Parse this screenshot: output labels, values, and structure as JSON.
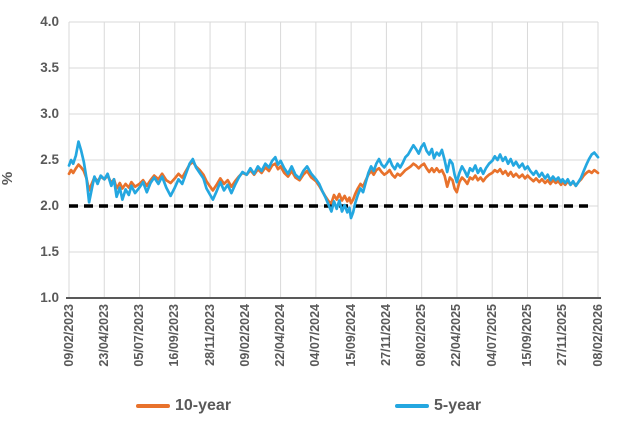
{
  "colors": {
    "gridline": "#D9D9D9",
    "axis_line": "#595959",
    "tick_text": "#595959"
  },
  "chart_data": {
    "type": "line",
    "title": "",
    "xlabel": "",
    "ylabel": "%",
    "ylim": [
      1.0,
      4.0
    ],
    "grid": true,
    "legend_position": "bottom",
    "y_ticks": [
      "4.0",
      "3.5",
      "3.0",
      "2.5",
      "2.0",
      "1.5",
      "1.0"
    ],
    "x_domain": [
      "09/02/2023",
      "08/02/2026"
    ],
    "x_tick_labels": [
      "09/02/2023",
      "23/04/2023",
      "05/07/2023",
      "16/09/2023",
      "28/11/2023",
      "09/02/2024",
      "22/04/2024",
      "04/07/2024",
      "15/09/2024",
      "27/11/2024",
      "08/02/2025",
      "22/04/2025",
      "04/07/2025",
      "15/09/2025",
      "27/11/2025",
      "08/02/2026"
    ],
    "reference_line": {
      "y": 2.0,
      "style": "dashed",
      "color": "#000000"
    },
    "x": [
      0.0,
      0.004,
      0.008,
      0.013,
      0.018,
      0.023,
      0.028,
      0.033,
      0.038,
      0.043,
      0.048,
      0.054,
      0.06,
      0.067,
      0.073,
      0.08,
      0.085,
      0.09,
      0.096,
      0.101,
      0.107,
      0.113,
      0.118,
      0.125,
      0.133,
      0.14,
      0.147,
      0.154,
      0.161,
      0.169,
      0.176,
      0.184,
      0.192,
      0.2,
      0.207,
      0.214,
      0.221,
      0.228,
      0.234,
      0.24,
      0.247,
      0.254,
      0.26,
      0.267,
      0.272,
      0.279,
      0.286,
      0.293,
      0.3,
      0.307,
      0.314,
      0.321,
      0.328,
      0.336,
      0.343,
      0.35,
      0.357,
      0.364,
      0.371,
      0.378,
      0.384,
      0.39,
      0.395,
      0.4,
      0.407,
      0.414,
      0.421,
      0.428,
      0.436,
      0.443,
      0.45,
      0.458,
      0.467,
      0.473,
      0.479,
      0.485,
      0.491,
      0.496,
      0.501,
      0.506,
      0.511,
      0.516,
      0.521,
      0.526,
      0.53,
      0.533,
      0.537,
      0.541,
      0.546,
      0.551,
      0.556,
      0.561,
      0.566,
      0.571,
      0.576,
      0.581,
      0.586,
      0.591,
      0.596,
      0.601,
      0.606,
      0.611,
      0.616,
      0.621,
      0.626,
      0.631,
      0.636,
      0.641,
      0.646,
      0.651,
      0.656,
      0.661,
      0.666,
      0.671,
      0.676,
      0.681,
      0.686,
      0.69,
      0.695,
      0.7,
      0.705,
      0.71,
      0.715,
      0.72,
      0.725,
      0.729,
      0.733,
      0.738,
      0.743,
      0.748,
      0.753,
      0.758,
      0.763,
      0.768,
      0.773,
      0.778,
      0.783,
      0.788,
      0.794,
      0.8,
      0.805,
      0.81,
      0.815,
      0.82,
      0.825,
      0.83,
      0.835,
      0.84,
      0.845,
      0.851,
      0.857,
      0.862,
      0.867,
      0.872,
      0.878,
      0.883,
      0.889,
      0.894,
      0.9,
      0.905,
      0.91,
      0.915,
      0.92,
      0.925,
      0.93,
      0.933,
      0.938,
      0.943,
      0.948,
      0.953,
      0.958,
      0.963,
      0.968,
      0.973,
      0.978,
      0.983,
      0.988,
      0.993,
      1.0
    ],
    "series": [
      {
        "name": "10-year",
        "color": "#E8722C",
        "values": [
          2.35,
          2.39,
          2.36,
          2.41,
          2.45,
          2.42,
          2.38,
          2.3,
          2.17,
          2.24,
          2.31,
          2.27,
          2.32,
          2.29,
          2.33,
          2.25,
          2.29,
          2.19,
          2.25,
          2.19,
          2.24,
          2.2,
          2.26,
          2.21,
          2.24,
          2.28,
          2.22,
          2.28,
          2.33,
          2.29,
          2.35,
          2.28,
          2.25,
          2.3,
          2.35,
          2.31,
          2.38,
          2.45,
          2.48,
          2.43,
          2.39,
          2.34,
          2.27,
          2.21,
          2.17,
          2.23,
          2.3,
          2.24,
          2.28,
          2.21,
          2.27,
          2.32,
          2.36,
          2.34,
          2.39,
          2.34,
          2.4,
          2.36,
          2.42,
          2.38,
          2.44,
          2.46,
          2.4,
          2.43,
          2.36,
          2.32,
          2.38,
          2.31,
          2.28,
          2.34,
          2.38,
          2.31,
          2.27,
          2.22,
          2.16,
          2.1,
          2.05,
          2.03,
          2.12,
          2.07,
          2.13,
          2.06,
          2.11,
          2.05,
          2.09,
          2.03,
          2.07,
          2.13,
          2.19,
          2.24,
          2.21,
          2.28,
          2.34,
          2.38,
          2.34,
          2.39,
          2.41,
          2.37,
          2.34,
          2.36,
          2.39,
          2.34,
          2.31,
          2.35,
          2.33,
          2.36,
          2.39,
          2.41,
          2.43,
          2.46,
          2.44,
          2.41,
          2.44,
          2.46,
          2.41,
          2.37,
          2.41,
          2.37,
          2.41,
          2.37,
          2.39,
          2.33,
          2.21,
          2.31,
          2.28,
          2.19,
          2.15,
          2.26,
          2.31,
          2.28,
          2.24,
          2.31,
          2.29,
          2.33,
          2.28,
          2.31,
          2.27,
          2.31,
          2.34,
          2.36,
          2.39,
          2.37,
          2.4,
          2.35,
          2.38,
          2.33,
          2.37,
          2.32,
          2.35,
          2.31,
          2.34,
          2.3,
          2.33,
          2.3,
          2.27,
          2.3,
          2.26,
          2.29,
          2.25,
          2.28,
          2.24,
          2.28,
          2.25,
          2.27,
          2.23,
          2.26,
          2.23,
          2.27,
          2.23,
          2.26,
          2.22,
          2.26,
          2.29,
          2.33,
          2.36,
          2.38,
          2.36,
          2.39,
          2.36
        ]
      },
      {
        "name": "5-year",
        "color": "#24A7E0",
        "values": [
          2.44,
          2.5,
          2.46,
          2.55,
          2.7,
          2.6,
          2.48,
          2.3,
          2.04,
          2.18,
          2.32,
          2.24,
          2.33,
          2.29,
          2.35,
          2.22,
          2.29,
          2.1,
          2.2,
          2.07,
          2.18,
          2.12,
          2.22,
          2.14,
          2.2,
          2.26,
          2.15,
          2.25,
          2.31,
          2.24,
          2.32,
          2.2,
          2.11,
          2.2,
          2.29,
          2.24,
          2.35,
          2.46,
          2.51,
          2.42,
          2.36,
          2.3,
          2.19,
          2.12,
          2.07,
          2.16,
          2.26,
          2.17,
          2.23,
          2.14,
          2.23,
          2.31,
          2.37,
          2.34,
          2.41,
          2.35,
          2.43,
          2.38,
          2.46,
          2.42,
          2.49,
          2.53,
          2.45,
          2.49,
          2.41,
          2.35,
          2.43,
          2.34,
          2.3,
          2.38,
          2.43,
          2.35,
          2.29,
          2.24,
          2.16,
          2.09,
          2.01,
          1.94,
          2.05,
          1.97,
          2.06,
          1.94,
          2.01,
          1.93,
          1.98,
          1.87,
          1.93,
          2.03,
          2.12,
          2.19,
          2.15,
          2.26,
          2.36,
          2.43,
          2.38,
          2.46,
          2.51,
          2.45,
          2.42,
          2.46,
          2.51,
          2.44,
          2.4,
          2.46,
          2.42,
          2.47,
          2.53,
          2.56,
          2.61,
          2.66,
          2.62,
          2.57,
          2.64,
          2.68,
          2.6,
          2.56,
          2.62,
          2.52,
          2.58,
          2.55,
          2.61,
          2.5,
          2.37,
          2.5,
          2.46,
          2.34,
          2.26,
          2.36,
          2.43,
          2.38,
          2.32,
          2.41,
          2.38,
          2.44,
          2.36,
          2.41,
          2.35,
          2.41,
          2.46,
          2.49,
          2.54,
          2.5,
          2.56,
          2.49,
          2.53,
          2.46,
          2.51,
          2.44,
          2.48,
          2.42,
          2.46,
          2.4,
          2.43,
          2.38,
          2.34,
          2.38,
          2.32,
          2.36,
          2.3,
          2.34,
          2.28,
          2.32,
          2.28,
          2.31,
          2.26,
          2.29,
          2.25,
          2.29,
          2.23,
          2.27,
          2.22,
          2.26,
          2.31,
          2.38,
          2.45,
          2.51,
          2.56,
          2.58,
          2.53
        ]
      }
    ]
  }
}
